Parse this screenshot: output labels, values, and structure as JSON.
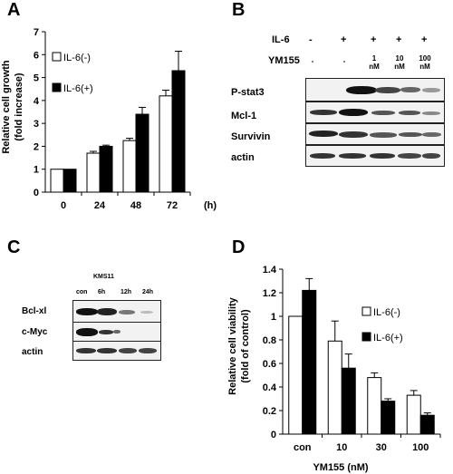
{
  "panel_a": {
    "letter": "A",
    "chart_data": {
      "type": "bar",
      "categories": [
        "0",
        "24",
        "48",
        "72"
      ],
      "x_unit": "(h)",
      "ylabel_line1": "Relative cell growth",
      "ylabel_line2": "(fold increase)",
      "ylim": [
        0,
        7
      ],
      "yticks": [
        0,
        1,
        2,
        3,
        4,
        5,
        6,
        7
      ],
      "series": [
        {
          "name": "IL-6(-)",
          "color": "#ffffff",
          "values": [
            1.0,
            1.7,
            2.25,
            4.2
          ],
          "errors": [
            0.0,
            0.08,
            0.1,
            0.25
          ]
        },
        {
          "name": "IL-6(+)",
          "color": "#000000",
          "values": [
            1.0,
            2.0,
            3.4,
            5.3
          ],
          "errors": [
            0.0,
            0.05,
            0.3,
            0.85
          ]
        }
      ],
      "legend_position": "top-left"
    }
  },
  "panel_b": {
    "letter": "B",
    "il6_label": "IL-6",
    "il6_signs": [
      "-",
      "+",
      "+",
      "+",
      "+"
    ],
    "ym_label": "YM155",
    "ym_values": [
      "-",
      "-",
      "1\nnM",
      "10\nnM",
      "100\nnM"
    ],
    "rows": [
      "P-stat3",
      "Mcl-1",
      "Survivin",
      "actin"
    ]
  },
  "panel_c": {
    "letter": "C",
    "cell_line": "KMS11",
    "lanes": [
      "con",
      "6h",
      "12h",
      "24h"
    ],
    "rows": [
      "Bcl-xl",
      "c-Myc",
      "actin"
    ]
  },
  "panel_d": {
    "letter": "D",
    "chart_data": {
      "type": "bar",
      "categories": [
        "con",
        "10",
        "30",
        "100"
      ],
      "xlabel": "YM155 (nM)",
      "ylabel_line1": "Relative cell viability",
      "ylabel_line2": "(fold of control)",
      "ylim": [
        0,
        1.4
      ],
      "yticks": [
        0,
        0.2,
        0.4,
        0.6,
        0.8,
        1,
        1.2,
        1.4
      ],
      "ytick_labels": [
        "0",
        "0.2",
        "0.4",
        "0.6",
        "0.8",
        "1",
        "1.2",
        "1.4"
      ],
      "series": [
        {
          "name": "IL-6(-)",
          "color": "#ffffff",
          "values": [
            1.0,
            0.79,
            0.48,
            0.33
          ],
          "errors": [
            0.0,
            0.17,
            0.04,
            0.04
          ]
        },
        {
          "name": "IL-6(+)",
          "color": "#000000",
          "values": [
            1.22,
            0.56,
            0.28,
            0.16
          ],
          "errors": [
            0.1,
            0.12,
            0.02,
            0.02
          ]
        }
      ],
      "legend_position": "top-right"
    }
  }
}
